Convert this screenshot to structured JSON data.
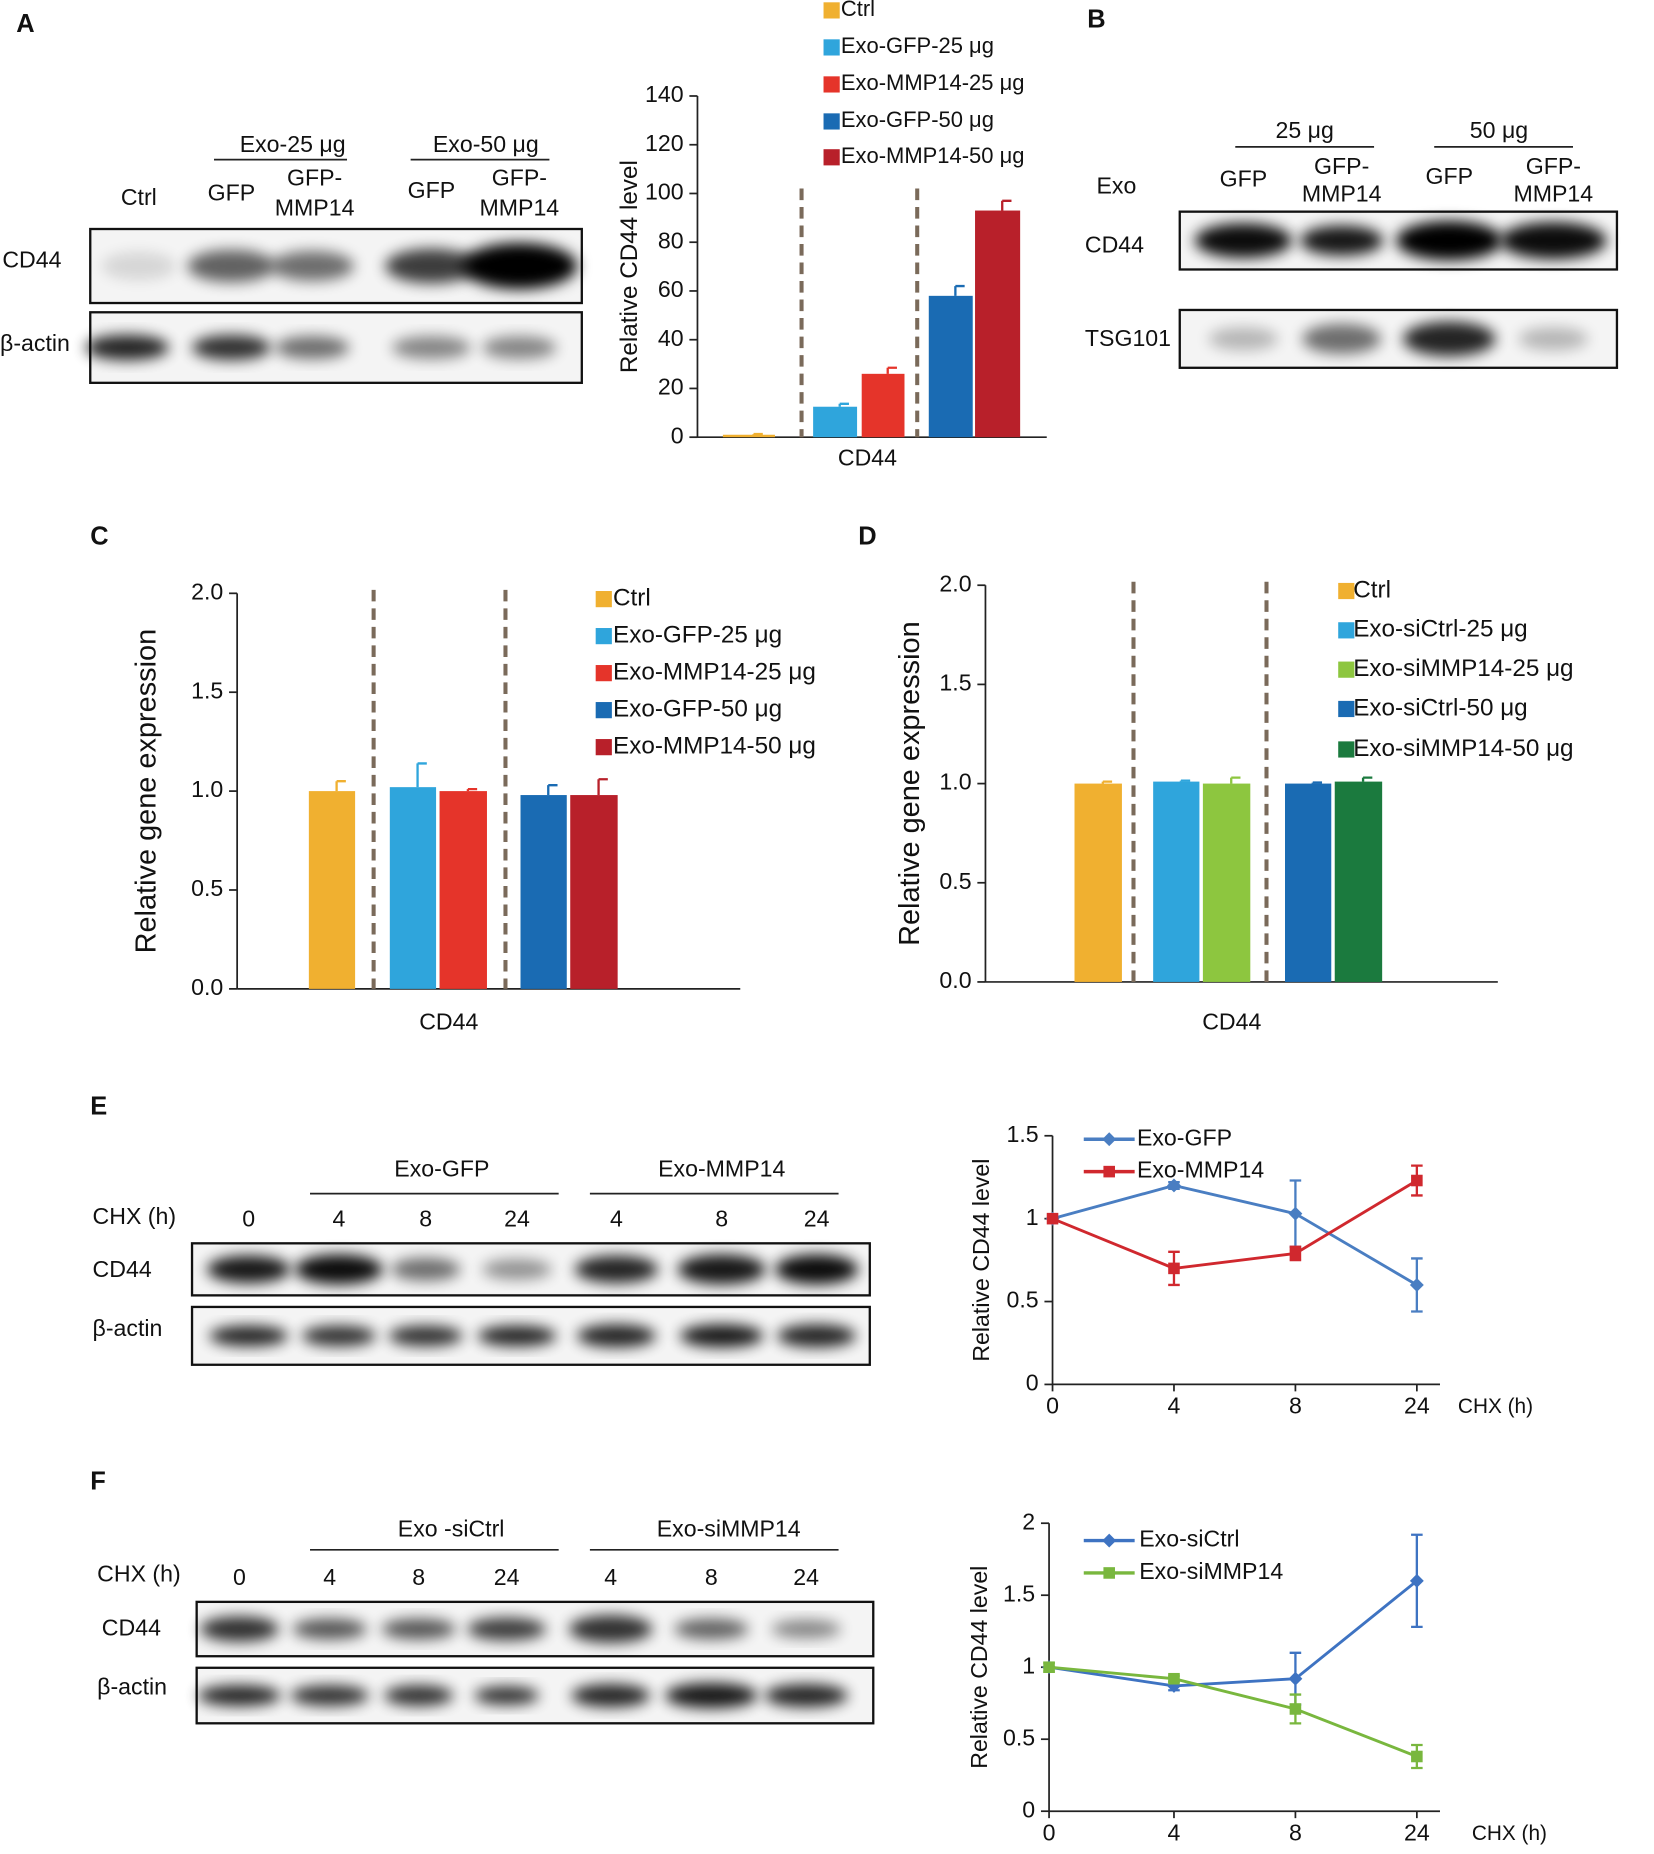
{
  "panel_labels": [
    "A",
    "B",
    "C",
    "D",
    "E",
    "F"
  ],
  "blots": [
    {
      "groups": [
        "Exo-25 μg",
        "Exo-50 μg"
      ],
      "lanes": [
        "Ctrl",
        "GFP",
        [
          "GFP-",
          "MMP14"
        ],
        "GFP",
        [
          "GFP-",
          "MMP14"
        ]
      ],
      "rows": [
        "CD44",
        "β-actin"
      ]
    },
    {
      "header": "Exo",
      "groups": [
        "25 μg",
        "50 μg"
      ],
      "lanes": [
        "GFP",
        [
          "GFP-",
          "MMP14"
        ],
        "GFP",
        [
          "GFP-",
          "MMP14"
        ]
      ],
      "rows": [
        "CD44",
        "TSG101"
      ]
    },
    {
      "header": "CHX (h)",
      "groups": [
        "Exo-GFP",
        "Exo-MMP14"
      ],
      "lanes": [
        "0",
        "4",
        "8",
        "24",
        "4",
        "8",
        "24"
      ],
      "rows": [
        "CD44",
        "β-actin"
      ]
    },
    {
      "header": "CHX (h)",
      "groups": [
        "Exo -siCtrl",
        "Exo-siMMP14"
      ],
      "lanes": [
        "0",
        "4",
        "8",
        "24",
        "4",
        "8",
        "24"
      ],
      "rows": [
        "CD44",
        "β-actin"
      ]
    }
  ],
  "chart_data": [
    {
      "type": "bar",
      "y_label": "Relative CD44 level",
      "categories": [
        "CD44"
      ],
      "ylim": [
        0,
        140
      ],
      "yticks": [
        0,
        20,
        40,
        60,
        80,
        100,
        120,
        140
      ],
      "series": [
        {
          "name": "Ctrl",
          "color": "#f0b030",
          "values": [
            1
          ],
          "errors": [
            0.3
          ]
        },
        {
          "name": "Exo-GFP-25 μg",
          "color": "#2fa5dc",
          "values": [
            12.5
          ],
          "errors": [
            1.2
          ]
        },
        {
          "name": "Exo-MMP14-25 μg",
          "color": "#e5342a",
          "values": [
            26
          ],
          "errors": [
            2.5
          ]
        },
        {
          "name": "Exo-GFP-50 μg",
          "color": "#1a6bb3",
          "values": [
            58
          ],
          "errors": [
            4
          ]
        },
        {
          "name": "Exo-MMP14-50 μg",
          "color": "#b8202a",
          "values": [
            93
          ],
          "errors": [
            4
          ]
        }
      ]
    },
    {
      "type": "bar",
      "y_label": "Relative gene expression",
      "categories": [
        "CD44"
      ],
      "ylim": [
        0,
        2
      ],
      "yticks": [
        {
          "value": 0,
          "label": "0.0"
        },
        {
          "value": 0.5,
          "label": "0.5"
        },
        {
          "value": 1,
          "label": "1.0"
        },
        {
          "value": 1.5,
          "label": "1.5"
        },
        {
          "value": 2,
          "label": "2.0"
        }
      ],
      "series": [
        {
          "name": "Ctrl",
          "color": "#f0b030",
          "values": [
            1.0
          ],
          "errors": [
            0.05
          ]
        },
        {
          "name": "Exo-GFP-25 μg",
          "color": "#2fa5dc",
          "values": [
            1.02
          ],
          "errors": [
            0.12
          ]
        },
        {
          "name": "Exo-MMP14-25 μg",
          "color": "#e5342a",
          "values": [
            1.0
          ],
          "errors": [
            0.01
          ]
        },
        {
          "name": "Exo-GFP-50 μg",
          "color": "#1a6bb3",
          "values": [
            0.98
          ],
          "errors": [
            0.05
          ]
        },
        {
          "name": "Exo-MMP14-50 μg",
          "color": "#b8202a",
          "values": [
            0.98
          ],
          "errors": [
            0.08
          ]
        }
      ]
    },
    {
      "type": "bar",
      "y_label": "Relative gene expression",
      "categories": [
        "CD44"
      ],
      "ylim": [
        0,
        2
      ],
      "yticks": [
        {
          "value": 0,
          "label": "0.0"
        },
        {
          "value": 0.5,
          "label": "0.5"
        },
        {
          "value": 1,
          "label": "1.0"
        },
        {
          "value": 1.5,
          "label": "1.5"
        },
        {
          "value": 2,
          "label": "2.0"
        }
      ],
      "series": [
        {
          "name": "Ctrl",
          "color": "#f0b030",
          "values": [
            1.0
          ],
          "errors": [
            0.01
          ]
        },
        {
          "name": "Exo-siCtrl-25 μg",
          "color": "#2fa5dc",
          "values": [
            1.01
          ],
          "errors": [
            0.005
          ]
        },
        {
          "name": "Exo-siMMP14-25 μg",
          "color": "#8dc63f",
          "values": [
            1.0
          ],
          "errors": [
            0.03
          ]
        },
        {
          "name": "Exo-siCtrl-50 μg",
          "color": "#1a6bb3",
          "values": [
            1.0
          ],
          "errors": [
            0.005
          ]
        },
        {
          "name": "Exo-siMMP14-50 μg",
          "color": "#1b7a3e",
          "values": [
            1.01
          ],
          "errors": [
            0.02
          ]
        }
      ]
    },
    {
      "type": "line",
      "y_label": "Relative CD44 level",
      "x_label": "CHX (h)",
      "categories": [
        "0",
        "4",
        "8",
        "24"
      ],
      "ylim": [
        0,
        1.5
      ],
      "yticks": [
        0,
        0.5,
        1,
        1.5
      ],
      "series": [
        {
          "name": "Exo-GFP",
          "color": "#4a7ec2",
          "marker": "diamond",
          "values": [
            1,
            1.2,
            1.03,
            0.6
          ],
          "errors": [
            0,
            0.02,
            0.2,
            0.16
          ]
        },
        {
          "name": "Exo-MMP14",
          "color": "#d0282e",
          "marker": "square",
          "values": [
            1,
            0.7,
            0.79,
            1.23
          ],
          "errors": [
            0,
            0.1,
            0.04,
            0.09
          ]
        }
      ]
    },
    {
      "type": "line",
      "y_label": "Relative CD44 level",
      "x_label": "CHX (h)",
      "categories": [
        "0",
        "4",
        "8",
        "24"
      ],
      "ylim": [
        0,
        2
      ],
      "yticks": [
        0,
        0.5,
        1,
        1.5,
        2
      ],
      "series": [
        {
          "name": "Exo-siCtrl",
          "color": "#3e73c2",
          "marker": "diamond",
          "values": [
            1,
            0.87,
            0.92,
            1.6
          ],
          "errors": [
            0,
            0.03,
            0.18,
            0.32
          ]
        },
        {
          "name": "Exo-siMMP14",
          "color": "#79b73e",
          "marker": "square",
          "values": [
            1,
            0.92,
            0.71,
            0.38
          ],
          "errors": [
            0.03,
            0.02,
            0.1,
            0.08
          ]
        }
      ]
    }
  ]
}
